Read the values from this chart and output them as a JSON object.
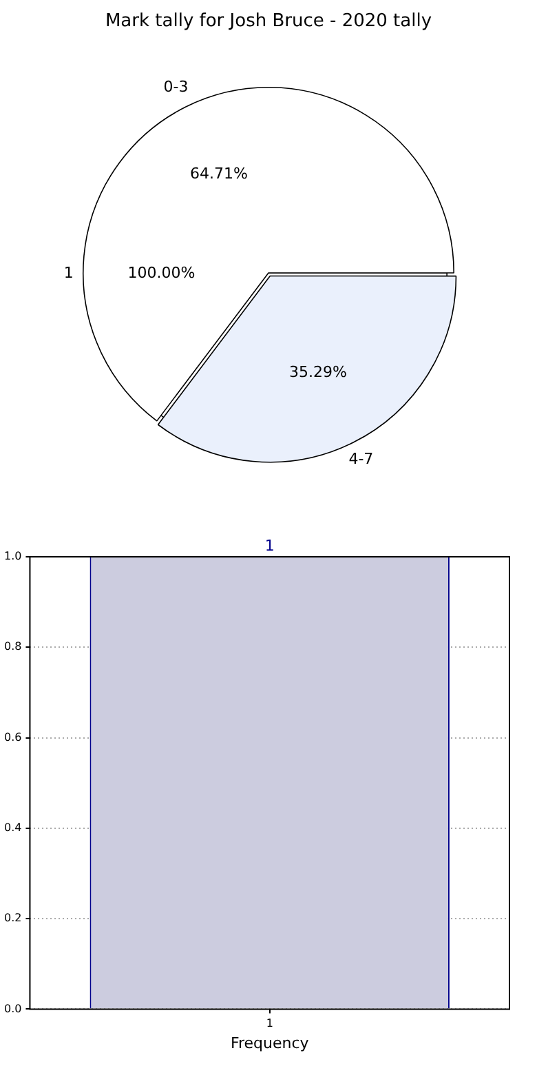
{
  "chart_data": [
    {
      "type": "pie",
      "title": "Mark tally for Josh Bruce - 2020 tally",
      "categories": [
        "1"
      ],
      "values": [
        100
      ],
      "colors": [
        "#ffffff"
      ],
      "value_labels": [
        "100.00%"
      ]
    },
    {
      "type": "pie",
      "categories": [
        "0-3",
        "4-7"
      ],
      "values": [
        64.71,
        35.29
      ],
      "colors": [
        "#ffffff",
        "#eaf0fc"
      ],
      "value_labels": [
        "64.71%",
        "35.29%"
      ]
    },
    {
      "type": "bar",
      "categories": [
        "1"
      ],
      "values": [
        1
      ],
      "color": "#ccccdf",
      "data_labels": true,
      "xlabel": "Frequency",
      "ylim": [
        0,
        1
      ],
      "yticks": [
        {
          "value": 0,
          "label": "0.0"
        },
        {
          "value": 0.2,
          "label": "0.2"
        },
        {
          "value": 0.4,
          "label": "0.4"
        },
        {
          "value": 0.6,
          "label": "0.6"
        },
        {
          "value": 0.8,
          "label": "0.8"
        },
        {
          "value": 1,
          "label": "1.0"
        }
      ],
      "grid": true
    }
  ]
}
